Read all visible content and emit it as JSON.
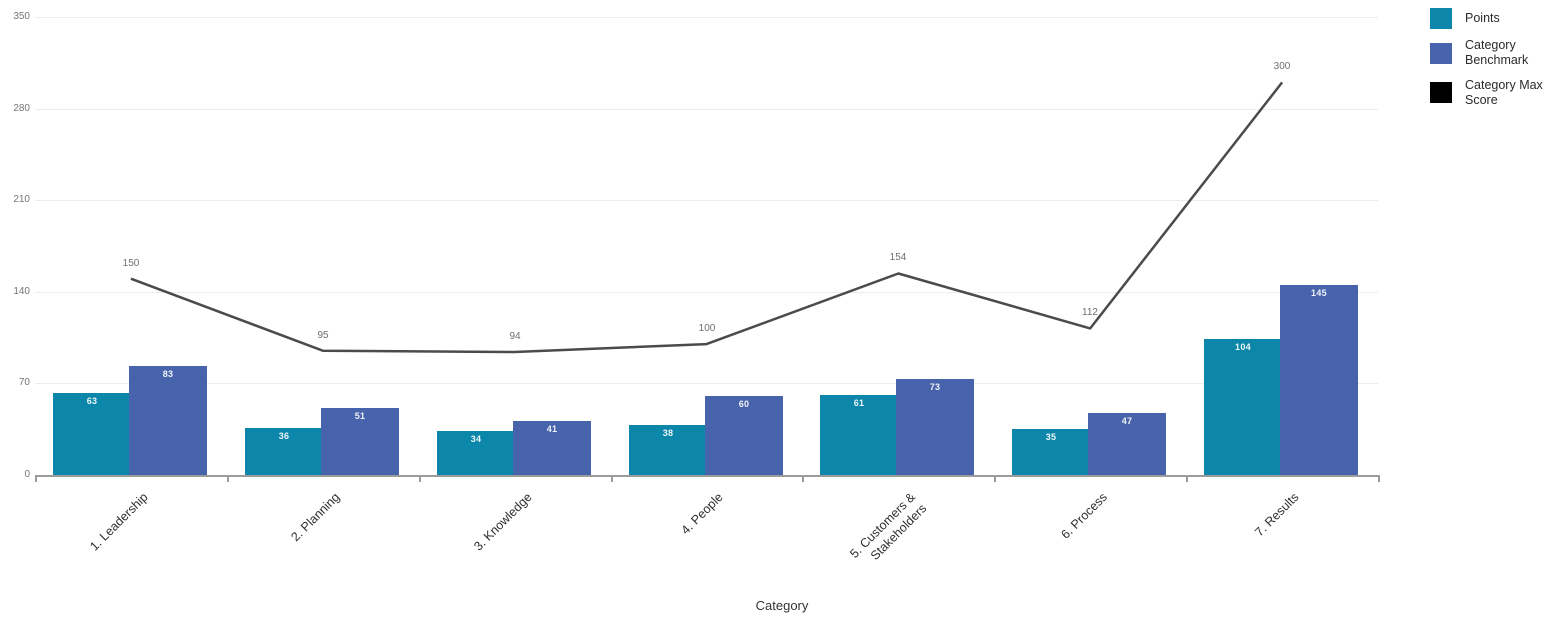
{
  "chart_data": {
    "type": "combo",
    "title": "",
    "categories": [
      "1. Leadership",
      "2. Planning",
      "3. Knowledge",
      "4. People",
      "5. Customers &\nStakeholders",
      "6. Process",
      "7. Results"
    ],
    "series": [
      {
        "name": "Points",
        "type": "bar",
        "color": "#0d87a9",
        "values": [
          63,
          36,
          34,
          38,
          61,
          35,
          104
        ]
      },
      {
        "name": "Category Benchmark",
        "type": "bar",
        "color": "#4763ab",
        "values": [
          83,
          51,
          41,
          60,
          73,
          47,
          145
        ]
      },
      {
        "name": "Category Max Score",
        "type": "line",
        "color": "#4b4b4b",
        "legend_color": "#000000",
        "values": [
          150,
          95,
          94,
          100,
          154,
          112,
          300
        ]
      }
    ],
    "xlabel": "Category",
    "ylabel": "",
    "ylim": [
      0,
      350
    ],
    "yticks": [
      0,
      70,
      140,
      210,
      280,
      350
    ],
    "grid": true,
    "legend_position": "top-right",
    "bar_value_labels_shown": true,
    "line_value_labels_shown": true,
    "colors": {
      "gridline": "#ececec",
      "axis_line": "#9b9b9b",
      "tick_label": "#757575",
      "line_value_label": "#6f6f6f",
      "category_label": "#2e2e2e",
      "bar_value_label": "#ffffff"
    }
  }
}
